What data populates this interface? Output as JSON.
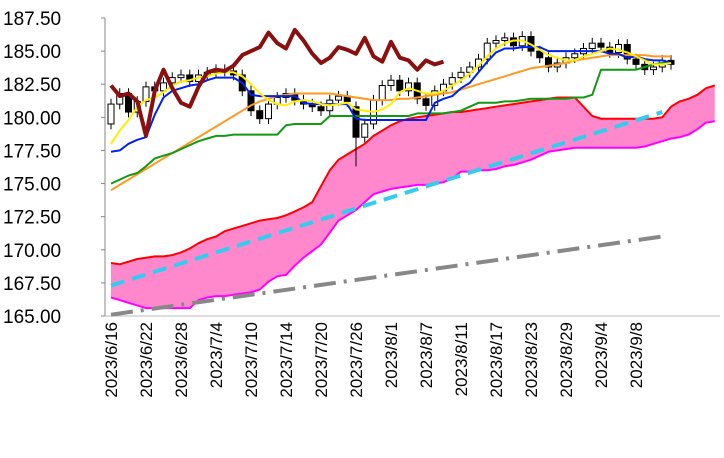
{
  "chart_data": {
    "type": "candlestick",
    "categories": [
      "2023/6/16",
      null,
      null,
      null,
      "2023/6/22",
      null,
      null,
      null,
      "2023/6/28",
      null,
      null,
      null,
      "2023/7/4",
      null,
      null,
      null,
      "2023/7/10",
      null,
      null,
      null,
      "2023/7/14",
      null,
      null,
      null,
      "2023/7/20",
      null,
      null,
      null,
      "2023/7/26",
      null,
      null,
      null,
      "2023/8/1",
      null,
      null,
      null,
      "2023/8/7",
      null,
      null,
      null,
      "2023/8/11",
      null,
      null,
      null,
      "2023/8/17",
      null,
      null,
      null,
      "2023/8/23",
      null,
      null,
      null,
      "2023/8/29",
      null,
      null,
      null,
      "2023/9/4",
      null,
      null,
      null,
      "2023/9/8",
      null,
      null,
      null,
      null,
      null,
      null,
      null,
      null,
      null
    ],
    "ylim": [
      165,
      187.5
    ],
    "yticks": [
      {
        "value": 165,
        "label": "165.00"
      },
      {
        "value": 167.5,
        "label": "167.50"
      },
      {
        "value": 170,
        "label": "170.00"
      },
      {
        "value": 172.5,
        "label": "172.50"
      },
      {
        "value": 175,
        "label": "175.00"
      },
      {
        "value": 177.5,
        "label": "177.50"
      },
      {
        "value": 180,
        "label": "180.00"
      },
      {
        "value": 182.5,
        "label": "182.50"
      },
      {
        "value": 185,
        "label": "185.00"
      },
      {
        "value": 187.5,
        "label": "187.50"
      }
    ],
    "cloud": {
      "color": "#ff88cc",
      "upper": {
        "color": "#ff0000",
        "values": [
          169.0,
          168.9,
          169.1,
          169.3,
          169.4,
          169.5,
          169.5,
          169.6,
          169.8,
          170.1,
          170.5,
          170.8,
          171.0,
          171.4,
          171.6,
          171.8,
          172.0,
          172.2,
          172.3,
          172.4,
          172.6,
          172.9,
          173.2,
          173.6,
          174.8,
          176.0,
          176.8,
          177.2,
          177.6,
          178.0,
          178.6,
          179.0,
          179.4,
          179.7,
          179.9,
          180.0,
          180.1,
          180.2,
          180.3,
          180.4,
          180.4,
          180.5,
          180.6,
          180.7,
          180.8,
          180.9,
          181.0,
          181.1,
          181.2,
          181.3,
          181.4,
          181.5,
          181.5,
          181.5,
          180.8,
          180.1,
          179.9,
          179.9,
          179.9,
          179.9,
          179.9,
          179.9,
          179.9,
          180.0,
          180.8,
          181.2,
          181.4,
          181.7,
          182.2,
          182.4
        ]
      },
      "lower": {
        "color": "#ff00ff",
        "values": [
          166.4,
          166.2,
          166.0,
          165.8,
          165.6,
          165.6,
          165.6,
          165.6,
          165.6,
          165.6,
          166.2,
          166.4,
          166.5,
          166.5,
          166.6,
          166.7,
          166.8,
          167.0,
          167.6,
          168.0,
          168.1,
          168.8,
          169.4,
          169.9,
          170.4,
          171.3,
          172.2,
          172.6,
          173.0,
          173.6,
          174.2,
          174.4,
          174.6,
          174.7,
          174.8,
          174.9,
          174.9,
          175.0,
          175.1,
          175.4,
          175.9,
          175.9,
          176.0,
          176.0,
          176.1,
          176.3,
          176.4,
          176.6,
          176.8,
          177.1,
          177.4,
          177.5,
          177.6,
          177.7,
          177.7,
          177.7,
          177.7,
          177.7,
          177.7,
          177.7,
          177.7,
          177.8,
          178.0,
          178.2,
          178.4,
          178.5,
          178.7,
          179.1,
          179.6,
          179.7
        ]
      }
    },
    "trend_lines": [
      {
        "color": "#33ccee",
        "dash": "14 8",
        "x": [
          0,
          63
        ],
        "values": [
          167.3,
          180.4
        ]
      },
      {
        "color": "#888888",
        "dash": "22 8 3 8",
        "x": [
          0,
          63
        ],
        "values": [
          165.1,
          171.0
        ]
      }
    ],
    "candles": {
      "open": [
        179.5,
        181.0,
        181.8,
        180.4,
        181.2,
        182.3,
        182.0,
        182.6,
        183.0,
        183.2,
        182.7,
        183.2,
        183.4,
        183.6,
        183.5,
        183.2,
        182.0,
        180.5,
        179.9,
        181.0,
        181.5,
        181.8,
        181.3,
        181.0,
        180.8,
        180.5,
        181.3,
        181.6,
        180.8,
        178.5,
        179.5,
        181.3,
        182.4,
        182.8,
        182.0,
        182.6,
        181.4,
        180.9,
        182.0,
        182.5,
        183.0,
        183.4,
        183.8,
        184.4,
        185.6,
        185.8,
        186.0,
        185.4,
        186.1,
        185.0,
        184.5,
        183.8,
        184.1,
        184.5,
        184.8,
        185.2,
        185.6,
        185.3,
        184.9,
        185.5,
        184.4,
        184.0,
        183.6,
        183.8,
        184.3
      ],
      "high": [
        181.4,
        182.2,
        182.2,
        181.6,
        182.7,
        182.7,
        183.0,
        183.4,
        183.6,
        183.6,
        183.6,
        183.8,
        184.0,
        184.0,
        183.9,
        183.6,
        182.4,
        180.9,
        181.4,
        181.9,
        182.2,
        182.2,
        181.7,
        181.4,
        181.2,
        181.7,
        182.0,
        182.0,
        181.2,
        179.9,
        181.7,
        182.8,
        183.2,
        183.2,
        183.0,
        183.0,
        181.8,
        182.4,
        182.9,
        183.4,
        183.8,
        184.2,
        184.8,
        186.0,
        186.2,
        186.4,
        186.4,
        186.5,
        186.5,
        185.4,
        184.9,
        184.5,
        184.9,
        185.2,
        185.6,
        186.0,
        186.0,
        185.7,
        185.9,
        185.9,
        184.8,
        184.4,
        184.2,
        184.7,
        184.7
      ],
      "low": [
        179.1,
        180.6,
        180.0,
        180.0,
        180.8,
        181.6,
        181.6,
        182.2,
        182.6,
        182.3,
        182.3,
        182.8,
        183.0,
        183.1,
        182.8,
        181.6,
        180.1,
        179.5,
        179.5,
        180.6,
        181.1,
        180.9,
        180.6,
        180.4,
        180.1,
        180.1,
        180.9,
        180.8,
        176.3,
        178.1,
        179.1,
        180.9,
        182.0,
        181.6,
        181.6,
        181.0,
        180.5,
        180.5,
        181.6,
        182.1,
        182.6,
        183.0,
        183.4,
        184.0,
        185.2,
        185.4,
        185.0,
        185.0,
        184.6,
        184.1,
        183.4,
        183.4,
        183.7,
        184.1,
        184.4,
        184.8,
        184.9,
        184.5,
        184.5,
        184.0,
        183.6,
        183.2,
        183.2,
        183.4,
        183.6
      ],
      "close": [
        181.0,
        181.8,
        180.4,
        181.2,
        182.3,
        182.0,
        182.6,
        183.0,
        183.2,
        182.7,
        183.2,
        183.4,
        183.6,
        183.5,
        183.2,
        182.0,
        180.5,
        179.9,
        181.0,
        181.5,
        181.8,
        181.3,
        181.0,
        180.8,
        180.5,
        181.3,
        181.6,
        181.2,
        178.5,
        179.5,
        181.3,
        182.4,
        182.8,
        182.0,
        182.6,
        181.4,
        180.9,
        182.0,
        182.5,
        183.0,
        183.4,
        183.8,
        184.4,
        185.6,
        185.8,
        186.0,
        185.4,
        186.1,
        185.0,
        184.5,
        183.8,
        184.1,
        184.5,
        184.8,
        185.2,
        185.6,
        185.3,
        184.9,
        185.5,
        184.4,
        184.0,
        183.6,
        183.8,
        184.3,
        184.0
      ]
    },
    "series": [
      {
        "color": "#ff9922",
        "line_width": 2,
        "values": [
          174.5,
          174.9,
          175.3,
          175.7,
          176.1,
          176.5,
          176.9,
          177.3,
          177.7,
          178.1,
          178.5,
          178.9,
          179.3,
          179.7,
          180.1,
          180.5,
          180.9,
          181.2,
          181.4,
          181.6,
          181.7,
          181.8,
          181.8,
          181.8,
          181.8,
          181.8,
          181.7,
          181.6,
          181.5,
          181.4,
          181.3,
          181.3,
          181.3,
          181.4,
          181.4,
          181.5,
          181.6,
          181.7,
          181.8,
          181.9,
          182.1,
          182.3,
          182.5,
          182.7,
          182.9,
          183.1,
          183.3,
          183.5,
          183.7,
          183.8,
          183.9,
          184.0,
          184.1,
          184.3,
          184.4,
          184.5,
          184.6,
          184.7,
          184.7,
          184.7,
          184.7,
          184.7,
          184.6,
          184.6,
          184.6,
          null,
          null,
          null,
          null,
          null
        ]
      },
      {
        "color": "#119911",
        "line_width": 2,
        "values": [
          175.0,
          175.3,
          175.6,
          175.8,
          176.3,
          176.9,
          177.1,
          177.3,
          177.6,
          177.9,
          178.2,
          178.4,
          178.6,
          178.6,
          178.7,
          178.7,
          178.7,
          178.7,
          178.7,
          178.7,
          179.4,
          179.5,
          179.5,
          179.5,
          179.5,
          180.1,
          180.1,
          180.1,
          180.1,
          180.1,
          180.1,
          180.1,
          180.1,
          180.1,
          180.1,
          180.3,
          180.3,
          180.3,
          180.3,
          180.4,
          180.5,
          180.8,
          181.1,
          181.1,
          181.1,
          181.2,
          181.2,
          181.3,
          181.4,
          181.4,
          181.4,
          181.4,
          181.4,
          181.5,
          181.5,
          181.7,
          183.6,
          183.6,
          183.6,
          183.6,
          183.6,
          183.8,
          184.0,
          184.1,
          184.1,
          null,
          null,
          null,
          null,
          null
        ]
      },
      {
        "color": "#0022ee",
        "line_width": 2,
        "values": [
          177.4,
          177.5,
          178.0,
          178.3,
          178.5,
          180.2,
          181.5,
          182.0,
          182.2,
          182.4,
          182.5,
          182.8,
          183.0,
          183.0,
          183.0,
          182.6,
          181.7,
          181.6,
          181.6,
          181.6,
          181.6,
          181.6,
          181.1,
          181.0,
          181.0,
          181.0,
          181.0,
          181.0,
          179.9,
          179.8,
          179.8,
          179.8,
          179.8,
          179.8,
          179.8,
          179.8,
          179.8,
          181.1,
          181.4,
          181.6,
          182.2,
          182.6,
          183.4,
          184.2,
          184.9,
          185.2,
          185.2,
          185.3,
          185.3,
          185.3,
          185.0,
          185.0,
          185.0,
          185.0,
          185.0,
          185.0,
          185.0,
          184.8,
          184.8,
          184.5,
          184.6,
          184.4,
          184.3,
          184.3,
          184.1,
          null,
          null,
          null,
          null,
          null
        ]
      },
      {
        "color": "#ffee00",
        "line_width": 2,
        "values": [
          178.0,
          179.0,
          179.8,
          180.8,
          181.3,
          181.5,
          181.9,
          182.4,
          182.7,
          182.8,
          183.0,
          183.1,
          183.3,
          183.4,
          183.4,
          183.1,
          182.5,
          181.8,
          181.3,
          181.0,
          180.9,
          181.2,
          181.3,
          181.2,
          181.0,
          180.9,
          181.0,
          181.1,
          180.6,
          180.5,
          180.4,
          180.6,
          181.0,
          181.9,
          182.2,
          182.0,
          181.8,
          181.8,
          182.0,
          182.4,
          182.8,
          183.3,
          183.9,
          184.6,
          185.2,
          185.6,
          185.8,
          185.8,
          185.5,
          185.1,
          184.7,
          184.5,
          184.3,
          184.3,
          184.6,
          184.8,
          185.0,
          185.2,
          185.1,
          184.9,
          184.6,
          184.3,
          184.0,
          184.0,
          184.1,
          null,
          null,
          null,
          null,
          null
        ]
      },
      {
        "color": "#8b0f0f",
        "line_width": 4,
        "values": [
          182.4,
          181.6,
          181.8,
          181.2,
          178.6,
          182.0,
          183.6,
          182.2,
          181.1,
          180.8,
          182.3,
          183.4,
          183.6,
          183.5,
          183.9,
          184.7,
          185.0,
          185.3,
          186.4,
          185.6,
          185.2,
          186.6,
          185.8,
          184.8,
          184.1,
          184.5,
          185.3,
          185.1,
          184.8,
          186.0,
          184.6,
          184.2,
          185.7,
          184.5,
          184.3,
          183.6,
          184.3,
          184.0,
          184.2,
          null,
          null,
          null,
          null,
          null,
          null,
          null,
          null,
          null,
          null,
          null,
          null,
          null,
          null,
          null,
          null,
          null,
          null,
          null,
          null,
          null,
          null,
          null,
          null,
          null,
          null,
          null,
          null,
          null,
          null,
          null
        ]
      }
    ]
  }
}
